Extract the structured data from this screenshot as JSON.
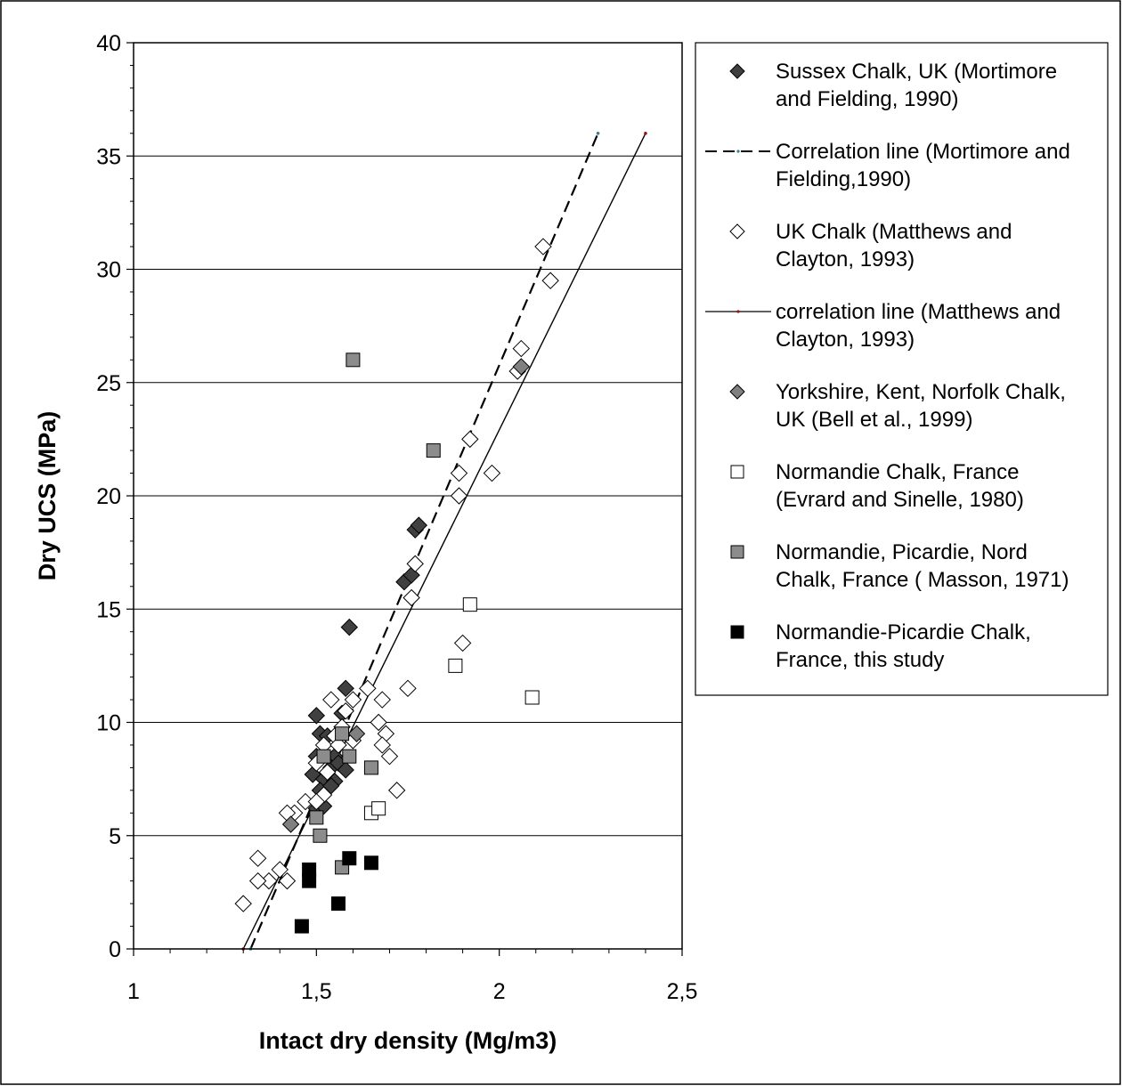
{
  "chart_data": {
    "type": "scatter",
    "xlabel": "Intact dry density (Mg/m3)",
    "ylabel": "Dry UCS (MPa)",
    "xlim": [
      1,
      2.5
    ],
    "ylim": [
      0,
      40
    ],
    "x_ticks": [
      {
        "value": 1,
        "label": "1"
      },
      {
        "value": 1.5,
        "label": "1,5"
      },
      {
        "value": 2,
        "label": "2"
      },
      {
        "value": 2.5,
        "label": "2,5"
      }
    ],
    "y_ticks": [
      {
        "value": 0,
        "label": "0"
      },
      {
        "value": 5,
        "label": "5"
      },
      {
        "value": 10,
        "label": "10"
      },
      {
        "value": 15,
        "label": "15"
      },
      {
        "value": 20,
        "label": "20"
      },
      {
        "value": 25,
        "label": "25"
      },
      {
        "value": 30,
        "label": "30"
      },
      {
        "value": 35,
        "label": "35"
      },
      {
        "value": 40,
        "label": "40"
      }
    ],
    "grid": "horizontal",
    "legend_position": "right",
    "series": [
      {
        "name_lines": [
          "Sussex Chalk, UK (Mortimore",
          "and Fielding, 1990)"
        ],
        "marker": "diamond",
        "fill": "#404040",
        "points": [
          [
            1.59,
            14.2
          ],
          [
            1.77,
            18.5
          ],
          [
            1.78,
            18.7
          ],
          [
            1.74,
            16.2
          ],
          [
            1.76,
            16.5
          ],
          [
            1.58,
            11.5
          ],
          [
            1.5,
            10.3
          ],
          [
            1.57,
            10.4
          ],
          [
            1.51,
            9.5
          ],
          [
            1.53,
            9.4
          ],
          [
            1.55,
            8.5
          ],
          [
            1.54,
            8.0
          ],
          [
            1.56,
            8.2
          ],
          [
            1.5,
            8.5
          ],
          [
            1.49,
            7.7
          ],
          [
            1.52,
            7.5
          ],
          [
            1.55,
            7.4
          ],
          [
            1.58,
            7.9
          ],
          [
            1.51,
            7.0
          ],
          [
            1.5,
            6.2
          ],
          [
            1.52,
            6.3
          ],
          [
            1.54,
            7.2
          ]
        ]
      },
      {
        "name_lines": [
          "Correlation line (Mortimore and",
          "Fielding,1990)"
        ],
        "line": "dashed",
        "points": [
          [
            1.32,
            0
          ],
          [
            2.27,
            36
          ]
        ]
      },
      {
        "name_lines": [
          "UK Chalk (Matthews and",
          "Clayton, 1993)"
        ],
        "marker": "diamond",
        "fill": "#ffffff",
        "points": [
          [
            2.12,
            31
          ],
          [
            2.14,
            29.5
          ],
          [
            2.06,
            26.5
          ],
          [
            2.05,
            25.5
          ],
          [
            1.92,
            22.5
          ],
          [
            1.89,
            21
          ],
          [
            1.98,
            21
          ],
          [
            1.89,
            20
          ],
          [
            1.77,
            17
          ],
          [
            1.76,
            15.5
          ],
          [
            1.9,
            13.5
          ],
          [
            1.64,
            11.5
          ],
          [
            1.75,
            11.5
          ],
          [
            1.54,
            11
          ],
          [
            1.6,
            11
          ],
          [
            1.68,
            11
          ],
          [
            1.58,
            10.5
          ],
          [
            1.67,
            10
          ],
          [
            1.69,
            9.5
          ],
          [
            1.68,
            9
          ],
          [
            1.7,
            8.5
          ],
          [
            1.52,
            9
          ],
          [
            1.57,
            9.8
          ],
          [
            1.55,
            9.4
          ],
          [
            1.6,
            9.2
          ],
          [
            1.56,
            9
          ],
          [
            1.72,
            7
          ],
          [
            1.5,
            8.2
          ],
          [
            1.53,
            7.8
          ],
          [
            1.47,
            6.5
          ],
          [
            1.52,
            6.8
          ],
          [
            1.5,
            6.5
          ],
          [
            1.44,
            6
          ],
          [
            1.42,
            6
          ],
          [
            1.4,
            3.5
          ],
          [
            1.42,
            3
          ],
          [
            1.34,
            4
          ],
          [
            1.37,
            3
          ],
          [
            1.34,
            3
          ],
          [
            1.3,
            2
          ]
        ]
      },
      {
        "name_lines": [
          "correlation line (Matthews and",
          "Clayton, 1993)"
        ],
        "line": "solid",
        "points": [
          [
            1.3,
            0
          ],
          [
            2.4,
            36
          ]
        ]
      },
      {
        "name_lines": [
          "Yorkshire, Kent, Norfolk Chalk,",
          "UK (Bell et al., 1999)"
        ],
        "marker": "diamond",
        "fill": "#808080",
        "points": [
          [
            2.06,
            25.7
          ],
          [
            1.61,
            9.5
          ],
          [
            1.43,
            5.5
          ]
        ]
      },
      {
        "name_lines": [
          "Normandie Chalk, France",
          "(Evrard and Sinelle, 1980)"
        ],
        "marker": "square",
        "fill": "#ffffff",
        "points": [
          [
            1.92,
            15.2
          ],
          [
            1.88,
            12.5
          ],
          [
            2.09,
            11.1
          ],
          [
            1.65,
            6
          ],
          [
            1.67,
            6.2
          ]
        ]
      },
      {
        "name_lines": [
          "Normandie, Picardie, Nord",
          "Chalk, France ( Masson, 1971)"
        ],
        "marker": "square",
        "fill": "#8c8c8c",
        "points": [
          [
            1.6,
            26
          ],
          [
            1.82,
            22
          ],
          [
            1.57,
            9.5
          ],
          [
            1.52,
            8.5
          ],
          [
            1.59,
            8.5
          ],
          [
            1.65,
            8
          ],
          [
            1.5,
            5.8
          ],
          [
            1.51,
            5
          ],
          [
            1.57,
            3.6
          ]
        ]
      },
      {
        "name_lines": [
          "Normandie-Picardie Chalk,",
          "France, this study"
        ],
        "marker": "square",
        "fill": "#000000",
        "points": [
          [
            1.48,
            3.5
          ],
          [
            1.48,
            3
          ],
          [
            1.59,
            4
          ],
          [
            1.65,
            3.8
          ],
          [
            1.56,
            2
          ],
          [
            1.46,
            1
          ]
        ]
      }
    ]
  }
}
